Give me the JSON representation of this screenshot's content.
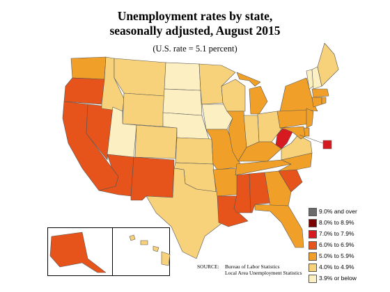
{
  "title_line1": "Unemployment rates by state,",
  "title_line2": "seasonally adjusted, August 2015",
  "subtitle": "(U.S. rate = 5.1 percent)",
  "legend": [
    {
      "label": "9.0% and over",
      "color": "#6b6b6b"
    },
    {
      "label": "8.0% to 8.9%",
      "color": "#7a0000"
    },
    {
      "label": "7.0% to 7.9%",
      "color": "#d71920"
    },
    {
      "label": "6.0% to 6.9%",
      "color": "#e6531b"
    },
    {
      "label": "5.0% to 5.9%",
      "color": "#f0a028"
    },
    {
      "label": "4.0% to 4.9%",
      "color": "#f7d27a"
    },
    {
      "label": "3.9% or below",
      "color": "#fcefc1"
    }
  ],
  "source_label": "SOURCE:",
  "source_line1": "Bureau of Labor Statistics",
  "source_line2": "Local Area Unemployment Statistics",
  "state_buckets": {
    "WA": 4,
    "OR": 3,
    "CA": 3,
    "NV": 3,
    "AZ": 3,
    "NM": 3,
    "ID": 5,
    "MT": 5,
    "WY": 5,
    "UT": 6,
    "CO": 5,
    "ND": 6,
    "SD": 6,
    "NE": 6,
    "KS": 5,
    "OK": 5,
    "TX": 5,
    "MN": 5,
    "IA": 6,
    "MO": 4,
    "AR": 4,
    "LA": 3,
    "WI": 5,
    "IL": 4,
    "IN": 5,
    "MI": 4,
    "OH": 5,
    "KY": 4,
    "TN": 4,
    "MS": 3,
    "AL": 3,
    "GA": 4,
    "FL": 4,
    "SC": 3,
    "NC": 4,
    "VA": 5,
    "WV": 2,
    "PA": 4,
    "NY": 4,
    "VT": 6,
    "NH": 6,
    "ME": 5,
    "MA": 4,
    "CT": 4,
    "RI": 4,
    "NJ": 4,
    "DE": 4,
    "MD": 4,
    "DC": 2,
    "AK": 3,
    "HI": 5
  }
}
